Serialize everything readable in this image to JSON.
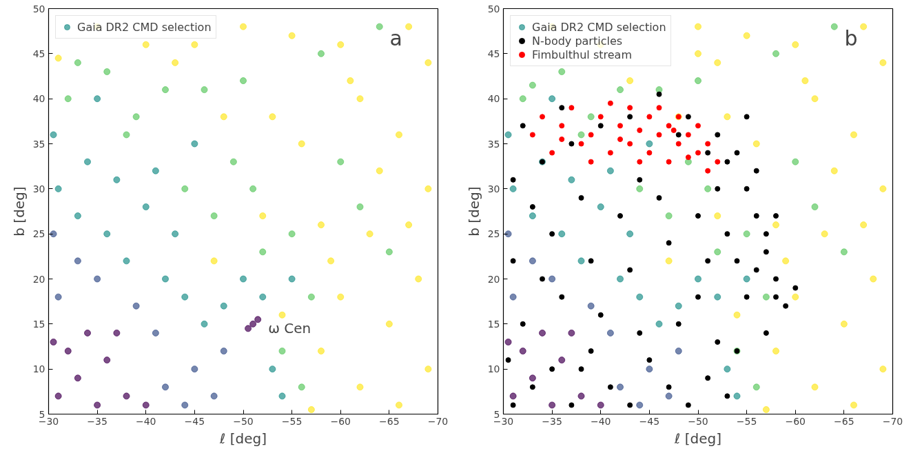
{
  "chart_data": [
    {
      "type": "scatter",
      "xlabel": "ℓ [deg]",
      "ylabel": "b [deg]",
      "xlim": [
        -30,
        -70
      ],
      "ylim": [
        5,
        50
      ],
      "xticks": [
        -30,
        -35,
        -40,
        -45,
        -50,
        -55,
        -60,
        -65,
        -70
      ],
      "yticks": [
        5,
        10,
        15,
        20,
        25,
        30,
        35,
        40,
        45,
        50
      ],
      "grid": false,
      "legend": "top left",
      "marker": "circle",
      "annotations": [
        "a",
        {
          "text": "ω Cen",
          "x": -51,
          "y": 15
        }
      ],
      "series": [
        {
          "name": "Gaia DR2 CMD selection",
          "color": "#21918c",
          "x": [
            -31,
            -33,
            -35,
            -32,
            -36,
            -38,
            -34,
            -30.5,
            -40,
            -37,
            -51,
            -50.5,
            -51.5,
            -31,
            -33,
            -42,
            -44,
            -39,
            -35,
            -45,
            -47,
            -30.5,
            -41,
            -48,
            -31,
            -33,
            -36,
            -38,
            -40,
            -42,
            -44,
            -46,
            -48,
            -52,
            -55,
            -34,
            -37,
            -30.5,
            -43,
            -50,
            -53,
            -45,
            -41,
            -35,
            -54,
            -32,
            -36,
            -39,
            -44,
            -47,
            -49,
            -52,
            -55,
            -57,
            -42,
            -46,
            -33,
            -38,
            -51,
            -54,
            -56,
            -60,
            -65,
            -64,
            -58,
            -50,
            -62,
            -31,
            -35,
            -40,
            -45,
            -50,
            -55,
            -60,
            -67,
            -69,
            -62,
            -66,
            -69,
            -63,
            -68,
            -65,
            -69,
            -62,
            -66,
            -58,
            -60,
            -58,
            -56,
            -53,
            -48,
            -43,
            -52,
            -47,
            -57,
            -64,
            -61,
            -67,
            -59,
            -54
          ],
          "values": [
            7,
            9,
            6,
            12,
            11,
            7,
            14,
            13,
            6,
            14,
            15,
            14.5,
            15.5,
            18,
            22,
            8,
            6,
            17,
            20,
            10,
            7,
            25,
            14,
            12,
            30,
            27,
            25,
            22,
            28,
            20,
            18,
            15,
            17,
            18,
            20,
            33,
            31,
            36,
            25,
            20,
            10,
            35,
            32,
            40,
            7,
            40,
            43,
            38,
            30,
            27,
            33,
            23,
            25,
            18,
            41,
            41,
            44,
            36,
            30,
            12,
            8,
            33,
            23,
            48,
            45,
            42,
            28,
            44.5,
            48,
            46,
            46,
            48,
            47,
            46,
            48,
            44,
            40,
            36,
            30,
            25,
            20,
            15,
            10,
            8,
            6,
            12,
            18,
            26,
            35,
            38,
            38,
            44,
            27,
            22,
            5.5,
            32,
            42,
            26,
            22,
            16
          ],
          "colors": [
            "#440154",
            "#440154",
            "#440154",
            "#440154",
            "#440154",
            "#440154",
            "#440154",
            "#440154",
            "#440154",
            "#440154",
            "#440154",
            "#440154",
            "#440154",
            "#3b528b",
            "#3b528b",
            "#3b528b",
            "#3b528b",
            "#3b528b",
            "#3b528b",
            "#3b528b",
            "#3b528b",
            "#3b528b",
            "#3b528b",
            "#3b528b",
            "#21918c",
            "#21918c",
            "#21918c",
            "#21918c",
            "#21918c",
            "#21918c",
            "#21918c",
            "#21918c",
            "#21918c",
            "#21918c",
            "#21918c",
            "#21918c",
            "#21918c",
            "#21918c",
            "#21918c",
            "#21918c",
            "#21918c",
            "#21918c",
            "#21918c",
            "#21918c",
            "#21918c",
            "#5ec962",
            "#5ec962",
            "#5ec962",
            "#5ec962",
            "#5ec962",
            "#5ec962",
            "#5ec962",
            "#5ec962",
            "#5ec962",
            "#5ec962",
            "#5ec962",
            "#5ec962",
            "#5ec962",
            "#5ec962",
            "#5ec962",
            "#5ec962",
            "#5ec962",
            "#5ec962",
            "#5ec962",
            "#5ec962",
            "#5ec962",
            "#5ec962",
            "#fde725",
            "#fde725",
            "#fde725",
            "#fde725",
            "#fde725",
            "#fde725",
            "#fde725",
            "#fde725",
            "#fde725",
            "#fde725",
            "#fde725",
            "#fde725",
            "#fde725",
            "#fde725",
            "#fde725",
            "#fde725",
            "#fde725",
            "#fde725",
            "#fde725",
            "#fde725",
            "#fde725",
            "#fde725",
            "#fde725",
            "#fde725",
            "#fde725",
            "#fde725",
            "#fde725",
            "#fde725",
            "#fde725",
            "#fde725",
            "#fde725",
            "#fde725",
            "#fde725"
          ]
        }
      ]
    },
    {
      "type": "scatter",
      "xlabel": "ℓ [deg]",
      "ylabel": "b [deg]",
      "xlim": [
        -30,
        -70
      ],
      "ylim": [
        5,
        50
      ],
      "xticks": [
        -30,
        -35,
        -40,
        -45,
        -50,
        -55,
        -60,
        -65,
        -70
      ],
      "yticks": [
        5,
        10,
        15,
        20,
        25,
        30,
        35,
        40,
        45,
        50
      ],
      "grid": false,
      "legend": "top left",
      "marker": "circle",
      "annotations": [
        "b"
      ],
      "series": [
        {
          "name": "Gaia DR2 CMD selection",
          "color": "#21918c",
          "x": [
            -31,
            -33,
            -35,
            -32,
            -36,
            -38,
            -34,
            -30.5,
            -40,
            -37,
            -31,
            -33,
            -42,
            -44,
            -39,
            -35,
            -45,
            -47,
            -30.5,
            -41,
            -48,
            -31,
            -33,
            -36,
            -38,
            -40,
            -42,
            -44,
            -46,
            -48,
            -52,
            -55,
            -34,
            -37,
            -30.5,
            -43,
            -50,
            -53,
            -45,
            -41,
            -35,
            -54,
            -32,
            -36,
            -39,
            -44,
            -47,
            -49,
            -52,
            -55,
            -57,
            -42,
            -46,
            -33,
            -38,
            -51,
            -54,
            -56,
            -60,
            -65,
            -64,
            -58,
            -50,
            -62,
            -50,
            -35,
            -40,
            -52,
            -50,
            -55,
            -60,
            -67,
            -69,
            -62,
            -66,
            -69,
            -63,
            -68,
            -65,
            -69,
            -62,
            -66,
            -58,
            -60,
            -58,
            -56,
            -53,
            -48,
            -43,
            -52,
            -47,
            -57,
            -64,
            -61,
            -67,
            -59,
            -54
          ],
          "values": [
            7,
            9,
            6,
            12,
            11,
            7,
            14,
            13,
            6,
            14,
            18,
            22,
            8,
            6,
            17,
            20,
            10,
            7,
            25,
            14,
            12,
            30,
            27,
            25,
            22,
            28,
            20,
            18,
            15,
            17,
            18,
            20,
            33,
            31,
            36,
            25,
            20,
            10,
            35,
            32,
            40,
            7,
            40,
            43,
            38,
            30,
            27,
            33,
            23,
            25,
            18,
            41,
            41,
            41.5,
            36,
            30,
            12,
            8,
            33,
            23,
            48,
            45,
            42,
            28,
            45,
            48,
            46,
            44,
            48,
            47,
            46,
            48,
            44,
            40,
            36,
            30,
            25,
            20,
            15,
            10,
            8,
            6,
            12,
            18,
            26,
            35,
            38,
            38,
            42,
            27,
            22,
            5.5,
            32,
            42,
            26,
            22,
            16
          ],
          "colors": [
            "#440154",
            "#440154",
            "#440154",
            "#440154",
            "#440154",
            "#440154",
            "#440154",
            "#440154",
            "#440154",
            "#440154",
            "#3b528b",
            "#3b528b",
            "#3b528b",
            "#3b528b",
            "#3b528b",
            "#3b528b",
            "#3b528b",
            "#3b528b",
            "#3b528b",
            "#3b528b",
            "#3b528b",
            "#21918c",
            "#21918c",
            "#21918c",
            "#21918c",
            "#21918c",
            "#21918c",
            "#21918c",
            "#21918c",
            "#21918c",
            "#21918c",
            "#21918c",
            "#21918c",
            "#21918c",
            "#21918c",
            "#21918c",
            "#21918c",
            "#21918c",
            "#21918c",
            "#21918c",
            "#21918c",
            "#21918c",
            "#5ec962",
            "#5ec962",
            "#5ec962",
            "#5ec962",
            "#5ec962",
            "#5ec962",
            "#5ec962",
            "#5ec962",
            "#5ec962",
            "#5ec962",
            "#5ec962",
            "#5ec962",
            "#5ec962",
            "#5ec962",
            "#5ec962",
            "#5ec962",
            "#5ec962",
            "#5ec962",
            "#5ec962",
            "#5ec962",
            "#5ec962",
            "#5ec962",
            "#fde725",
            "#fde725",
            "#fde725",
            "#fde725",
            "#fde725",
            "#fde725",
            "#fde725",
            "#fde725",
            "#fde725",
            "#fde725",
            "#fde725",
            "#fde725",
            "#fde725",
            "#fde725",
            "#fde725",
            "#fde725",
            "#fde725",
            "#fde725",
            "#fde725",
            "#fde725",
            "#fde725",
            "#fde725",
            "#fde725",
            "#fde725",
            "#fde725",
            "#fde725",
            "#fde725",
            "#fde725",
            "#fde725",
            "#fde725",
            "#fde725",
            "#fde725",
            "#fde725"
          ]
        },
        {
          "name": "N-body particles",
          "color": "#000000",
          "x": [
            -31,
            -33,
            -35,
            -37,
            -39,
            -41,
            -43,
            -45,
            -47,
            -49,
            -51,
            -53,
            -32,
            -36,
            -40,
            -44,
            -48,
            -52,
            -50,
            -54,
            -31,
            -35,
            -39,
            -43,
            -47,
            -51,
            -55,
            -57,
            -58,
            -59,
            -57,
            -56,
            -55,
            -57,
            -56,
            -54,
            -52,
            -49,
            -46,
            -43,
            -40,
            -37,
            -34,
            -31,
            -33,
            -38,
            -42,
            -46,
            -50,
            -53,
            -52,
            -58,
            -56,
            -54,
            -60,
            -53,
            -51,
            -48,
            -32,
            -36,
            -58,
            -55,
            -30.5,
            -44,
            -38,
            -34
          ],
          "values": [
            6,
            8,
            10,
            6,
            12,
            8,
            6,
            11,
            8,
            6,
            9,
            7,
            15,
            18,
            16,
            14,
            15,
            13,
            18,
            12,
            22,
            25,
            22,
            21,
            24,
            22,
            18,
            14,
            20,
            17,
            23,
            27,
            30,
            25,
            32,
            34,
            36,
            38,
            40.5,
            38,
            37,
            35,
            33,
            31,
            28,
            29,
            27,
            29,
            27,
            25,
            30,
            18,
            21,
            22,
            19,
            33,
            34,
            36,
            37,
            39,
            27,
            38,
            11,
            31,
            10,
            20
          ]
        },
        {
          "name": "Fimbulthul stream",
          "color": "#ff0000",
          "x": [
            -33,
            -34,
            -35,
            -36,
            -37,
            -38,
            -39,
            -40,
            -41,
            -41,
            -42,
            -43,
            -43,
            -44,
            -45,
            -45,
            -46,
            -46,
            -47,
            -48,
            -48,
            -49,
            -49,
            -50,
            -50,
            -51,
            -51,
            -52,
            -47,
            -44,
            -42,
            -39,
            -36,
            -47.5
          ],
          "values": [
            36,
            38,
            34,
            37,
            39,
            35,
            36,
            38,
            34,
            39.5,
            37,
            35,
            39,
            36.5,
            38,
            34,
            36,
            39,
            37,
            35,
            38,
            36,
            33.5,
            37,
            34,
            35,
            32,
            33,
            33,
            33,
            35.5,
            33,
            35.5,
            36.5
          ]
        }
      ]
    }
  ]
}
